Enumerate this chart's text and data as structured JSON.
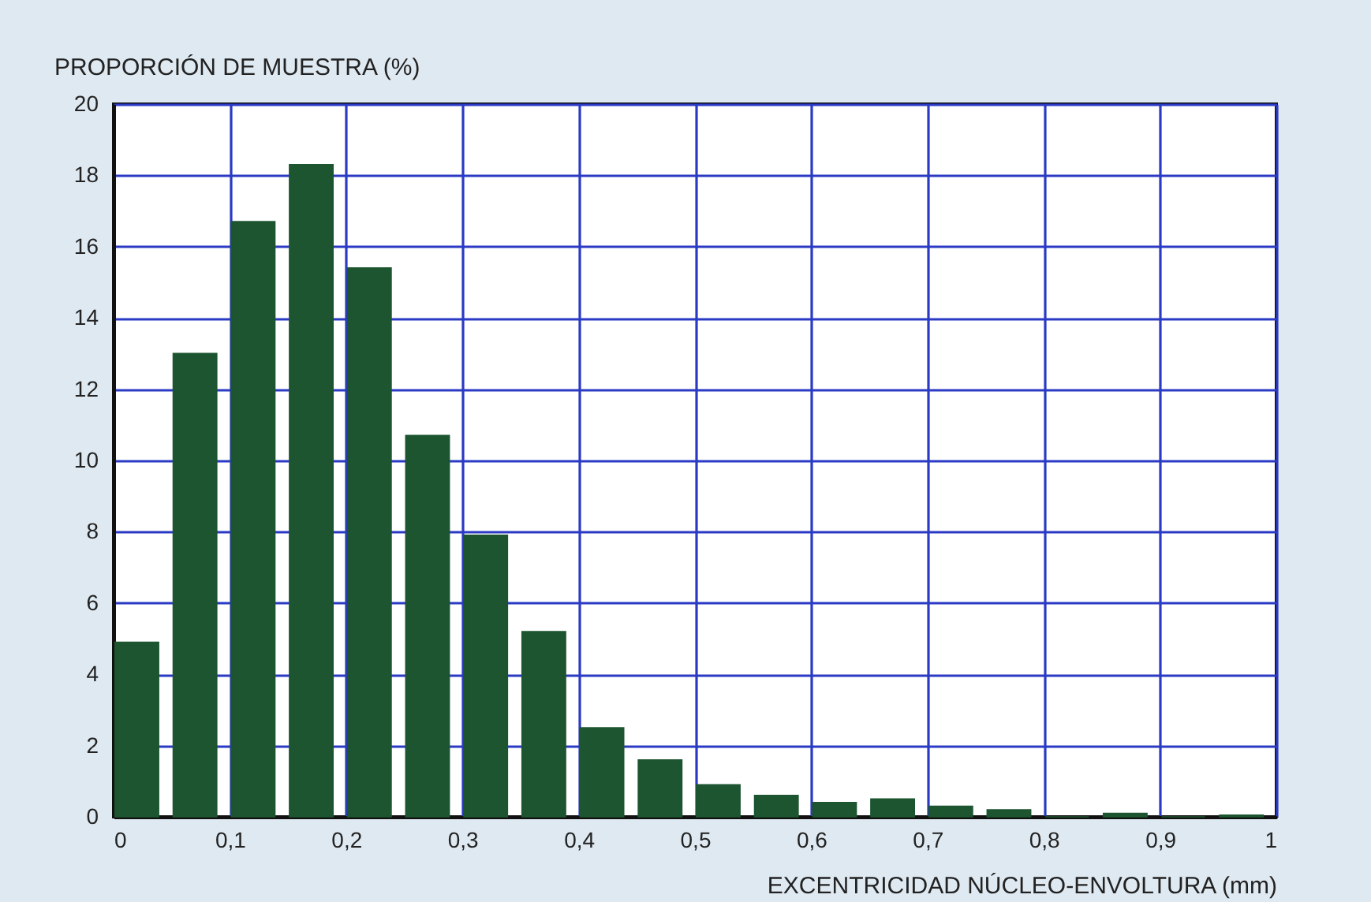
{
  "chart_data": {
    "type": "bar",
    "xlabel": "EXCENTRICIDAD NÚCLEO-ENVOLTURA (mm)",
    "ylabel": "PROPORCIÓN DE MUESTRA (%)",
    "x": [
      0.02,
      0.07,
      0.12,
      0.17,
      0.22,
      0.27,
      0.32,
      0.37,
      0.42,
      0.47,
      0.52,
      0.57,
      0.62,
      0.67,
      0.72,
      0.77,
      0.82,
      0.87,
      0.92,
      0.97
    ],
    "values": [
      4.9,
      13.0,
      16.7,
      18.3,
      15.4,
      10.7,
      7.9,
      5.2,
      2.5,
      1.6,
      0.9,
      0.6,
      0.4,
      0.5,
      0.3,
      0.2,
      0,
      0.1,
      0,
      0.05
    ],
    "color": "#1c5530",
    "xlim": [
      0,
      1
    ],
    "xticks": [
      0,
      {
        "value": 0.1,
        "label": "0,1"
      },
      {
        "value": 0.2,
        "label": "0,2"
      },
      {
        "value": 0.3,
        "label": "0,3"
      },
      {
        "value": 0.4,
        "label": "0,4"
      },
      {
        "value": 0.5,
        "label": "0,5"
      },
      {
        "value": 0.6,
        "label": "0,6"
      },
      {
        "value": 0.7,
        "label": "0,7"
      },
      {
        "value": 0.8,
        "label": "0,8"
      },
      {
        "value": 0.9,
        "label": "0,9"
      },
      1
    ],
    "ylim": [
      0,
      20
    ],
    "yticks": [
      0,
      2,
      4,
      6,
      8,
      10,
      12,
      14,
      16,
      18,
      20
    ],
    "grid": true
  }
}
